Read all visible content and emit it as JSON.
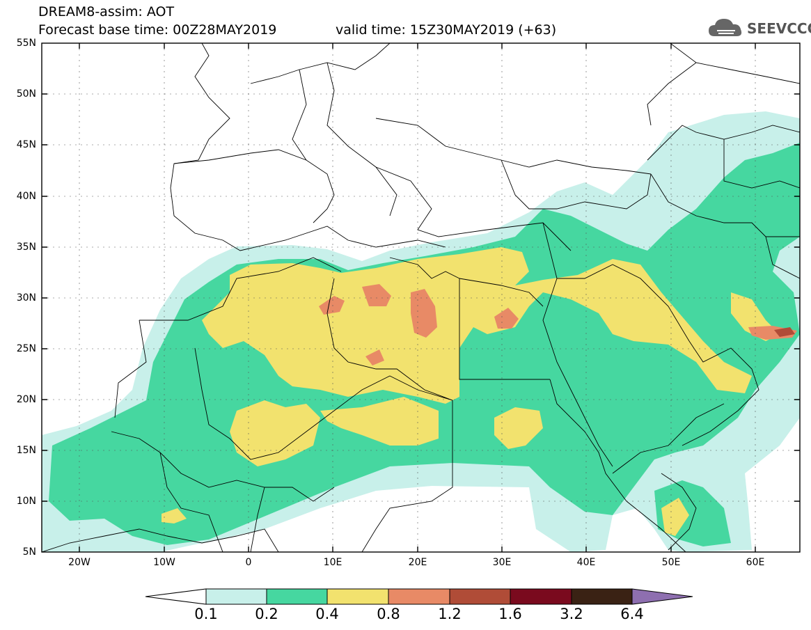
{
  "header": {
    "title_line1": "DREAM8-assim: AOT",
    "title_line2": "Forecast base time: 00Z28MAY2019",
    "valid_time": "valid time: 15Z30MAY2019 (+63)"
  },
  "logo": {
    "text": "SEEVCCC",
    "icon": "cloud-logo-icon"
  },
  "map": {
    "type": "contour-map",
    "variable": "AOT",
    "lon_range": [
      -25,
      65
    ],
    "lat_range": [
      5,
      55
    ],
    "lat_labels": [
      "55N",
      "50N",
      "45N",
      "40N",
      "35N",
      "30N",
      "25N",
      "20N",
      "15N",
      "10N",
      "5N"
    ],
    "lon_labels": [
      "20W",
      "10W",
      "0",
      "10E",
      "20E",
      "30E",
      "40E",
      "50E",
      "60E"
    ],
    "colors": {
      "c01": "#c8f0ea",
      "c02": "#46d7a0",
      "c04": "#f2e26e",
      "c08": "#e88a66",
      "c12": "#b04c37",
      "c16": "#7a0a1e",
      "c32": "#3a2214",
      "c64": "#8e6fb0"
    }
  },
  "colorbar": {
    "labels": [
      "0.1",
      "0.2",
      "0.4",
      "0.8",
      "1.2",
      "1.6",
      "3.2",
      "6.4"
    ],
    "colors": [
      "#ffffff",
      "#c8f0ea",
      "#46d7a0",
      "#f2e26e",
      "#e88a66",
      "#b04c37",
      "#7a0a1e",
      "#3a2214",
      "#8e6fb0"
    ]
  }
}
